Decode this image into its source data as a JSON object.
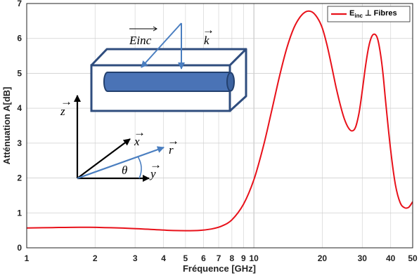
{
  "chart_data": {
    "type": "line",
    "title": "",
    "xlabel": "Fréquence [GHz]",
    "ylabel": "Atténuation A[dB]",
    "xscale": "log",
    "xlim": [
      1,
      50
    ],
    "ylim": [
      0,
      7
    ],
    "grid": true,
    "legend_position": "top-right",
    "x_ticks": [
      "1",
      "2",
      "3",
      "4",
      "5",
      "6",
      "7",
      "8",
      "9",
      "10",
      "20",
      "30",
      "40",
      "50"
    ],
    "x_tick_values": [
      1,
      2,
      3,
      4,
      5,
      6,
      7,
      8,
      9,
      10,
      20,
      30,
      40,
      50
    ],
    "y_ticks": [
      "0",
      "1",
      "2",
      "3",
      "4",
      "5",
      "6",
      "7"
    ],
    "y_tick_values": [
      0,
      1,
      2,
      3,
      4,
      5,
      6,
      7
    ],
    "series": [
      {
        "legend_main": "E",
        "legend_sub": "inc",
        "legend_rest": " ⊥ Fibres",
        "color": "#e8111a",
        "x": [
          1,
          1.3,
          1.7,
          2.2,
          2.8,
          3.5,
          4.2,
          5,
          5.8,
          6.5,
          7.2,
          8,
          9,
          10,
          11,
          12,
          13,
          14,
          15,
          16,
          17,
          18,
          19,
          20,
          21,
          22,
          23,
          24,
          25,
          26,
          27,
          28,
          29,
          30,
          31,
          32,
          33,
          34,
          35,
          36,
          37,
          38,
          40,
          42,
          44,
          46,
          48,
          50
        ],
        "y": [
          0.57,
          0.58,
          0.59,
          0.58,
          0.56,
          0.53,
          0.5,
          0.49,
          0.5,
          0.54,
          0.62,
          0.8,
          1.25,
          1.95,
          2.9,
          3.95,
          4.95,
          5.75,
          6.3,
          6.62,
          6.77,
          6.76,
          6.6,
          6.3,
          5.8,
          5.2,
          4.6,
          4.1,
          3.7,
          3.45,
          3.35,
          3.45,
          3.85,
          4.5,
          5.2,
          5.75,
          6.05,
          6.12,
          6.0,
          5.6,
          5.0,
          4.2,
          2.8,
          1.8,
          1.3,
          1.15,
          1.16,
          1.32
        ]
      }
    ],
    "inset": {
      "e_inc_label": "E",
      "e_inc_sub": "inc",
      "k_label": "k",
      "z_label": "z",
      "x_label": "x",
      "y_label": "y",
      "r_label": "r",
      "theta_label": "θ",
      "vector_mark": "→",
      "box_color": "#2f4d7e",
      "fiber_color": "#4a73b6",
      "arrow_color": "#4a7ec0"
    }
  }
}
